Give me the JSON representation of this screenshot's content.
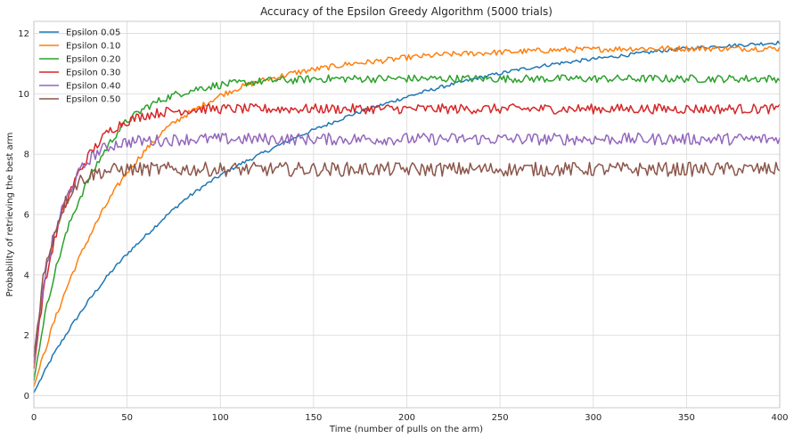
{
  "chart_data": {
    "type": "line",
    "title": "Accuracy of the Epsilon Greedy Algorithm (5000 trials)",
    "xlabel": "Time (number of pulls on the arm)",
    "ylabel": "Probability of retrieving the best arm",
    "xlim": [
      0,
      400
    ],
    "ylim": [
      -0.4,
      12.4
    ],
    "x_ticks": [
      "0",
      "50",
      "100",
      "150",
      "200",
      "250",
      "300",
      "350",
      "400"
    ],
    "y_ticks": [
      "0",
      "2",
      "4",
      "6",
      "8",
      "10",
      "12"
    ],
    "grid": true,
    "legend_position": "top-left",
    "x": [
      0,
      5,
      10,
      15,
      20,
      25,
      30,
      35,
      40,
      45,
      50,
      60,
      70,
      80,
      90,
      100,
      110,
      120,
      130,
      140,
      150,
      160,
      170,
      180,
      190,
      200,
      220,
      240,
      260,
      280,
      300,
      320,
      340,
      360,
      380,
      400
    ],
    "series": [
      {
        "name": "Epsilon 0.05",
        "color": "#1f77b4",
        "values": [
          0.1,
          0.7,
          1.3,
          1.8,
          2.3,
          2.75,
          3.2,
          3.6,
          4.0,
          4.35,
          4.7,
          5.3,
          5.9,
          6.45,
          6.9,
          7.3,
          7.65,
          7.95,
          8.25,
          8.55,
          8.8,
          9.05,
          9.3,
          9.5,
          9.7,
          9.9,
          10.25,
          10.55,
          10.8,
          11.0,
          11.15,
          11.3,
          11.45,
          11.55,
          11.62,
          11.7
        ]
      },
      {
        "name": "Epsilon 0.10",
        "color": "#ff7f0e",
        "values": [
          0.3,
          1.3,
          2.3,
          3.15,
          3.95,
          4.65,
          5.3,
          5.9,
          6.45,
          6.95,
          7.4,
          8.15,
          8.8,
          9.25,
          9.6,
          9.95,
          10.2,
          10.4,
          10.55,
          10.7,
          10.8,
          10.9,
          11.0,
          11.05,
          11.12,
          11.2,
          11.3,
          11.35,
          11.4,
          11.45,
          11.47,
          11.5,
          11.5,
          11.5,
          11.5,
          11.5
        ]
      },
      {
        "name": "Epsilon 0.20",
        "color": "#2ca02c",
        "values": [
          0.5,
          2.4,
          3.8,
          4.9,
          5.85,
          6.6,
          7.25,
          7.8,
          8.3,
          8.75,
          9.1,
          9.55,
          9.85,
          10.05,
          10.2,
          10.3,
          10.35,
          10.4,
          10.45,
          10.45,
          10.5,
          10.5,
          10.5,
          10.5,
          10.5,
          10.5,
          10.5,
          10.5,
          10.5,
          10.5,
          10.5,
          10.5,
          10.5,
          10.5,
          10.5,
          10.5
        ]
      },
      {
        "name": "Epsilon 0.30",
        "color": "#d62728",
        "values": [
          0.9,
          3.4,
          4.9,
          6.0,
          6.85,
          7.5,
          8.0,
          8.4,
          8.75,
          8.95,
          9.1,
          9.3,
          9.4,
          9.45,
          9.5,
          9.5,
          9.5,
          9.5,
          9.5,
          9.5,
          9.5,
          9.5,
          9.5,
          9.5,
          9.5,
          9.5,
          9.5,
          9.5,
          9.5,
          9.5,
          9.5,
          9.5,
          9.5,
          9.5,
          9.5,
          9.5
        ]
      },
      {
        "name": "Epsilon 0.40",
        "color": "#9467bd",
        "values": [
          1.1,
          3.7,
          5.1,
          6.15,
          6.9,
          7.45,
          7.85,
          8.1,
          8.25,
          8.35,
          8.4,
          8.45,
          8.45,
          8.5,
          8.5,
          8.5,
          8.5,
          8.5,
          8.5,
          8.5,
          8.5,
          8.5,
          8.5,
          8.5,
          8.5,
          8.5,
          8.5,
          8.5,
          8.5,
          8.5,
          8.5,
          8.5,
          8.5,
          8.5,
          8.5,
          8.5
        ]
      },
      {
        "name": "Epsilon 0.50",
        "color": "#8c564b",
        "values": [
          1.3,
          3.9,
          5.2,
          6.15,
          6.8,
          7.15,
          7.3,
          7.4,
          7.45,
          7.48,
          7.5,
          7.5,
          7.5,
          7.5,
          7.5,
          7.5,
          7.5,
          7.5,
          7.5,
          7.5,
          7.5,
          7.5,
          7.5,
          7.5,
          7.5,
          7.5,
          7.5,
          7.5,
          7.5,
          7.5,
          7.5,
          7.5,
          7.5,
          7.5,
          7.5,
          7.5
        ]
      }
    ]
  }
}
